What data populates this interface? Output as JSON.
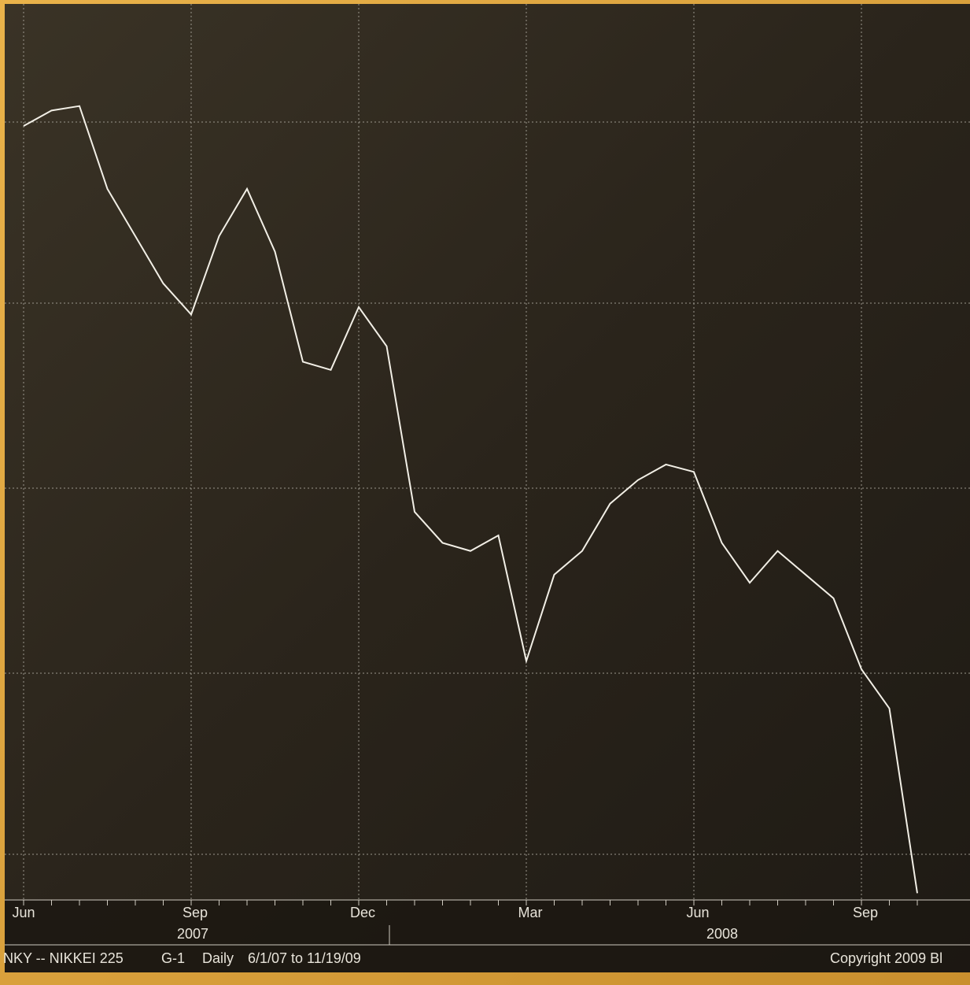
{
  "chart_data": {
    "type": "line",
    "categories": [
      "Jun",
      null,
      null,
      null,
      null,
      null,
      "Sep",
      null,
      null,
      null,
      null,
      null,
      "Dec",
      null,
      null,
      null,
      null,
      null,
      "Mar",
      null,
      null,
      null,
      null,
      null,
      "Jun",
      null,
      null,
      null,
      null,
      null,
      "Sep",
      null,
      null
    ],
    "series": [
      {
        "name": "NIKKEI 225",
        "color": "#f2efe6",
        "values": [
          17980,
          18190,
          18250,
          17130,
          16490,
          15850,
          15430,
          16490,
          17130,
          16280,
          14790,
          14680,
          15530,
          15000,
          12760,
          12340,
          12230,
          12440,
          10740,
          11910,
          12230,
          12870,
          13190,
          13400,
          13300,
          12340,
          11800,
          12230,
          11910,
          11590,
          10630,
          10100,
          7600
        ]
      }
    ],
    "ylim": [
      7540,
      19685
    ],
    "year_labels": [
      "2007",
      "2008"
    ],
    "footer": [
      "NKY -- NIKKEI 225",
      "G-1",
      "Daily",
      "6/1/07 to 11/19/09",
      "Copyright 2009 Bl"
    ]
  }
}
